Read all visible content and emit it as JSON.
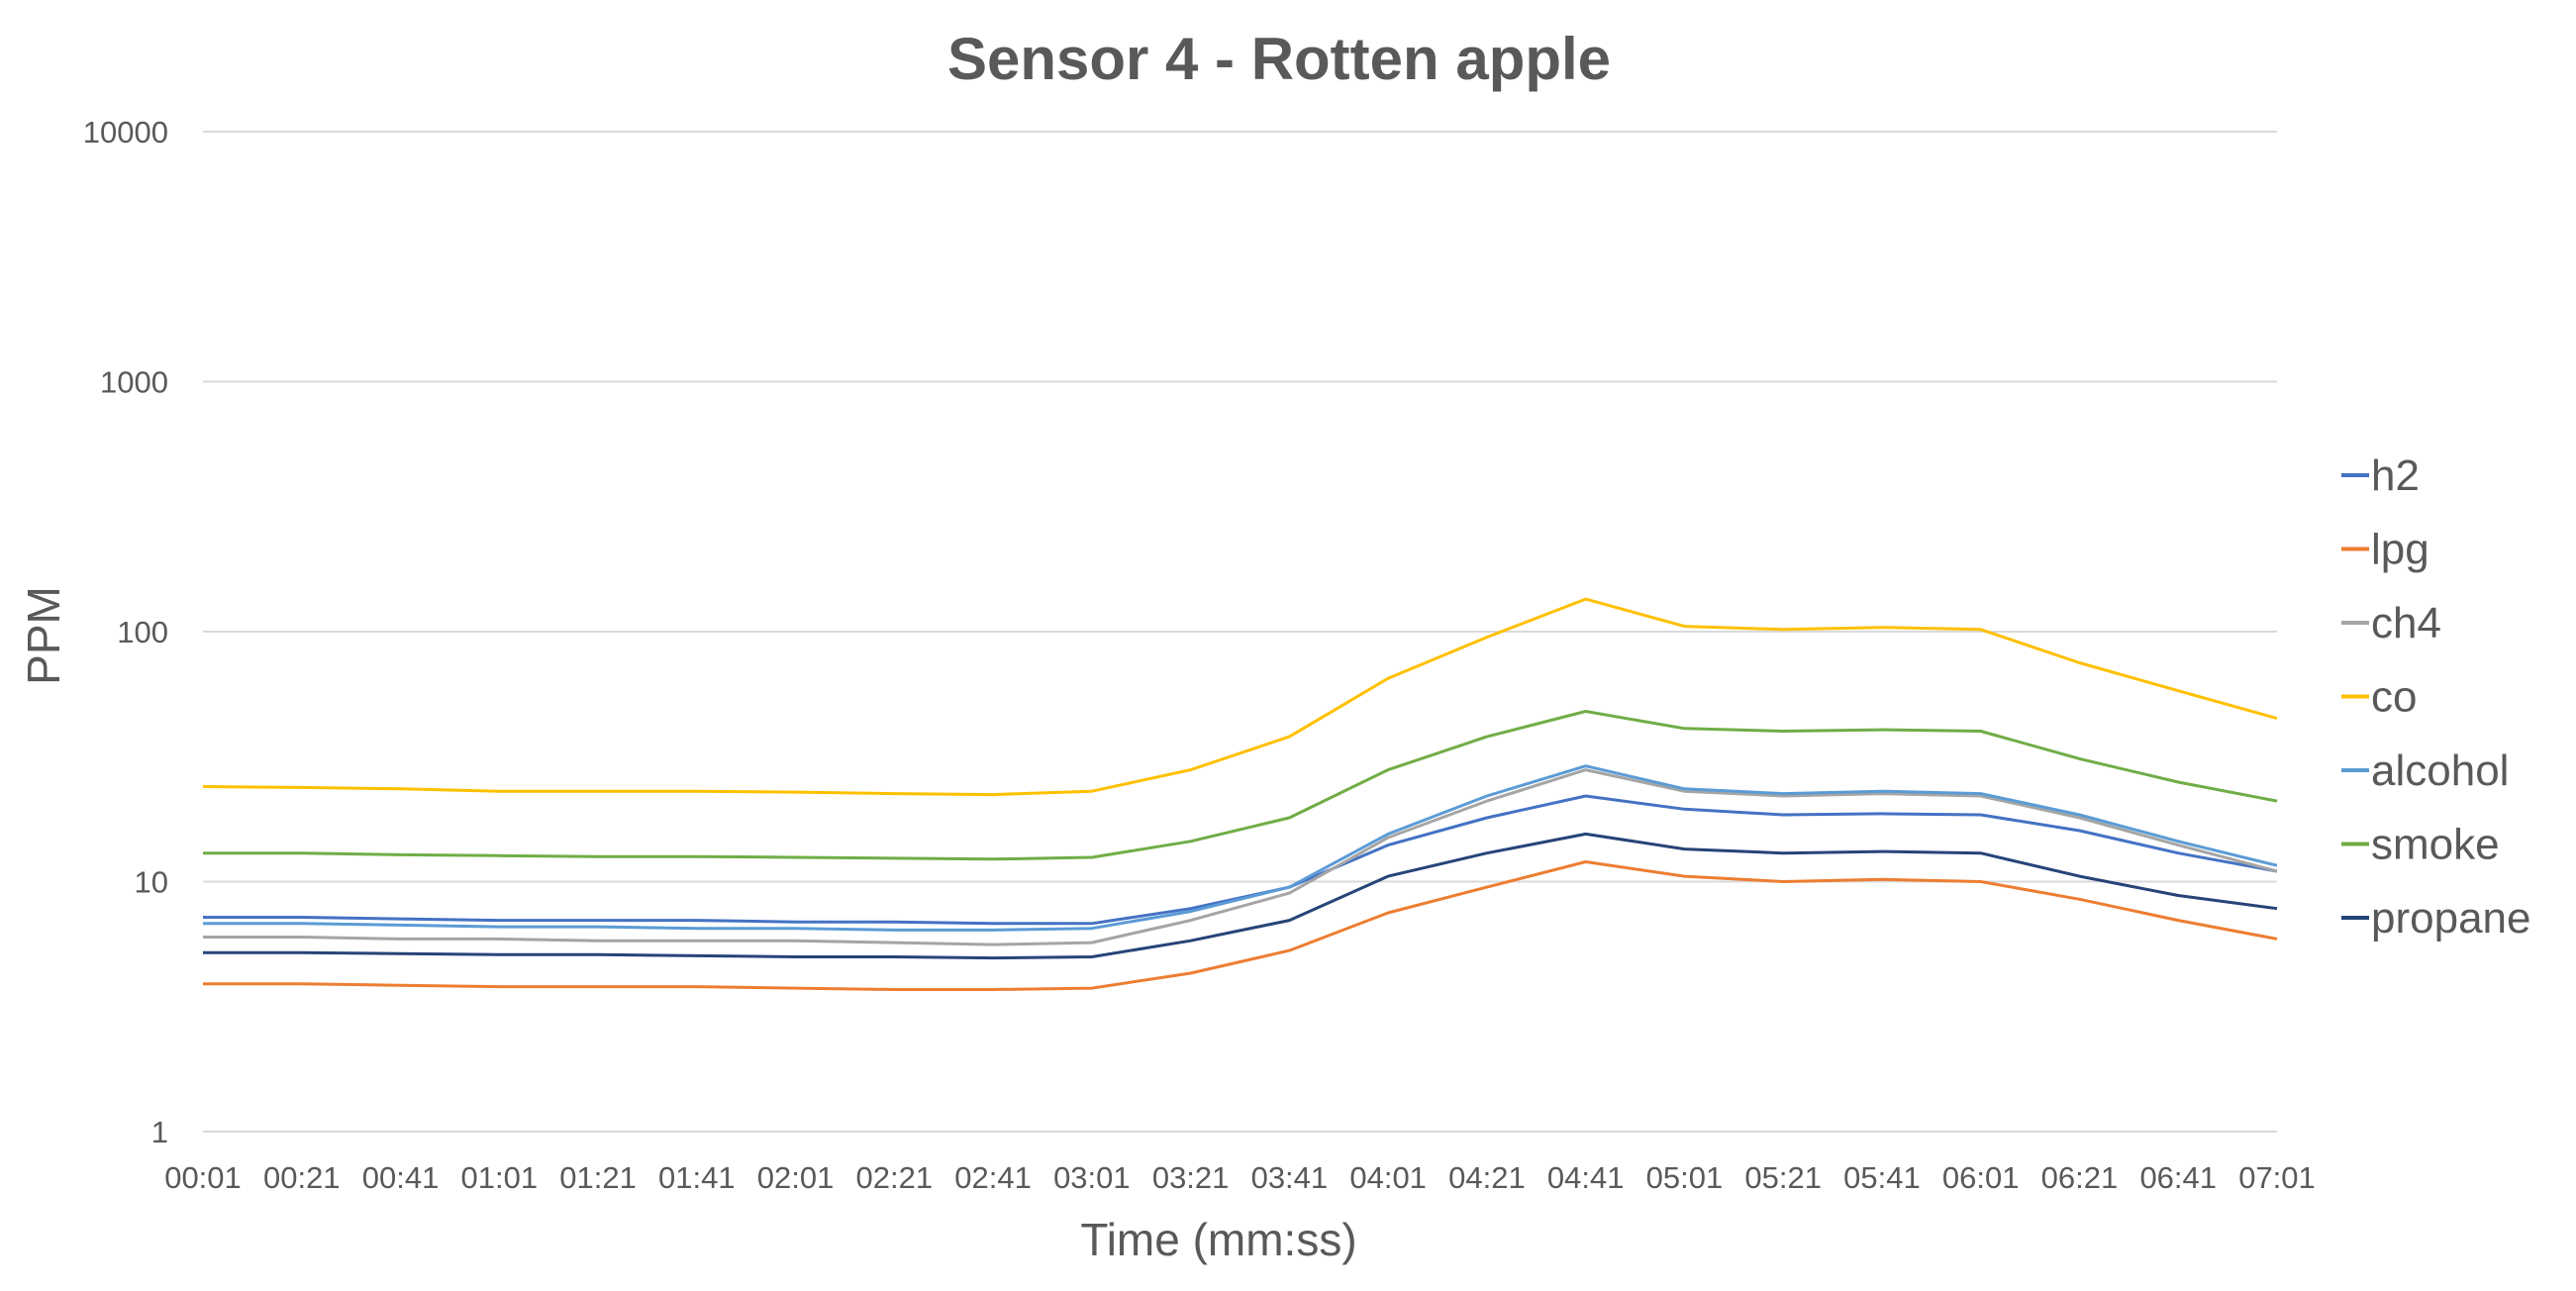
{
  "chart_data": {
    "type": "line",
    "title": "Sensor 4 - Rotten apple",
    "xlabel": "Time (mm:ss)",
    "ylabel": "PPM",
    "yscale": "log",
    "ylim": [
      1,
      10000
    ],
    "yticks": [
      "1",
      "10",
      "100",
      "1000",
      "10000"
    ],
    "legend_position": "right",
    "grid": true,
    "x_tick_labels": [
      "00:01",
      "00:21",
      "00:41",
      "01:01",
      "01:21",
      "01:41",
      "02:01",
      "02:21",
      "02:41",
      "03:01",
      "03:21",
      "03:41",
      "04:01",
      "04:21",
      "04:41",
      "05:01",
      "05:21",
      "05:41",
      "06:01",
      "06:21",
      "06:41",
      "07:01"
    ],
    "x": [
      "00:01",
      "00:21",
      "00:41",
      "01:01",
      "01:21",
      "01:41",
      "02:01",
      "02:21",
      "02:41",
      "03:01",
      "03:21",
      "03:41",
      "04:01",
      "04:21",
      "04:41",
      "05:01",
      "05:21",
      "05:41",
      "06:01",
      "06:21",
      "06:41",
      "07:01"
    ],
    "series": [
      {
        "name": "h2",
        "color": "#4472C4",
        "values": [
          7.2,
          7.2,
          7.1,
          7.0,
          7.0,
          7.0,
          6.9,
          6.9,
          6.8,
          6.8,
          7.8,
          9.5,
          14.0,
          18.0,
          22.0,
          19.5,
          18.5,
          18.7,
          18.5,
          16.0,
          13.0,
          11.0
        ]
      },
      {
        "name": "lpg",
        "color": "#ED7D31",
        "values": [
          3.9,
          3.9,
          3.85,
          3.8,
          3.8,
          3.8,
          3.75,
          3.7,
          3.7,
          3.75,
          4.3,
          5.3,
          7.5,
          9.5,
          12.0,
          10.5,
          10.0,
          10.2,
          10.0,
          8.5,
          7.0,
          5.9
        ]
      },
      {
        "name": "ch4",
        "color": "#A5A5A5",
        "values": [
          6.0,
          6.0,
          5.9,
          5.9,
          5.8,
          5.8,
          5.8,
          5.7,
          5.6,
          5.7,
          7.0,
          9.0,
          15.0,
          21.0,
          28.0,
          23.0,
          22.0,
          22.5,
          22.0,
          18.0,
          14.0,
          11.0
        ]
      },
      {
        "name": "co",
        "color": "#FFC000",
        "values": [
          24.0,
          23.8,
          23.5,
          23.0,
          23.0,
          23.0,
          22.8,
          22.5,
          22.3,
          23.0,
          28.0,
          38.0,
          65.0,
          95.0,
          135.0,
          105.0,
          102.0,
          104.0,
          102.0,
          75.0,
          58.0,
          45.0
        ]
      },
      {
        "name": "alcohol",
        "color": "#5B9BD5",
        "values": [
          6.8,
          6.8,
          6.7,
          6.6,
          6.6,
          6.5,
          6.5,
          6.4,
          6.4,
          6.5,
          7.6,
          9.5,
          15.5,
          22.0,
          29.0,
          23.5,
          22.5,
          23.0,
          22.5,
          18.5,
          14.5,
          11.6
        ]
      },
      {
        "name": "smoke",
        "color": "#70AD47",
        "values": [
          13.0,
          13.0,
          12.8,
          12.7,
          12.6,
          12.6,
          12.5,
          12.4,
          12.3,
          12.5,
          14.5,
          18.0,
          28.0,
          38.0,
          48.0,
          41.0,
          40.0,
          40.5,
          40.0,
          31.0,
          25.0,
          21.0
        ]
      },
      {
        "name": "propane",
        "color": "#264478",
        "values": [
          5.2,
          5.2,
          5.15,
          5.1,
          5.1,
          5.05,
          5.0,
          5.0,
          4.95,
          5.0,
          5.8,
          7.0,
          10.5,
          13.0,
          15.5,
          13.5,
          13.0,
          13.2,
          13.0,
          10.5,
          8.8,
          7.8
        ]
      }
    ]
  }
}
